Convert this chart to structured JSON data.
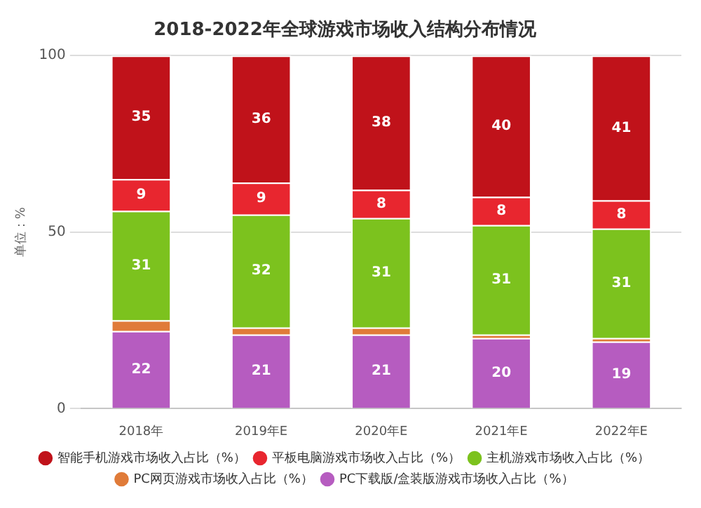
{
  "chart_data": {
    "type": "bar",
    "stacked": true,
    "title": "2018-2022年全球游戏市场收入结构分布情况",
    "ylabel": "单位：%",
    "categories": [
      "2018年",
      "2019年E",
      "2020年E",
      "2021年E",
      "2022年E"
    ],
    "series": [
      {
        "name": "PC下载版/盒装版游戏市场收入占比（%）",
        "color": "#b65cc0",
        "values": [
          22,
          21,
          21,
          20,
          19
        ],
        "value_labels": [
          "22",
          "21",
          "21",
          "20",
          "19"
        ]
      },
      {
        "name": "PC网页游戏市场收入占比（%）",
        "color": "#e07b39",
        "values": [
          3,
          2,
          2,
          1,
          1
        ],
        "value_labels": [
          null,
          null,
          null,
          null,
          null
        ]
      },
      {
        "name": "主机游戏市场收入占比（%）",
        "color": "#7cc21e",
        "values": [
          31,
          32,
          31,
          31,
          31
        ],
        "value_labels": [
          "31",
          "32",
          "31",
          "31",
          "31"
        ]
      },
      {
        "name": "平板电脑游戏市场收入占比（%）",
        "color": "#e8262f",
        "values": [
          9,
          9,
          8,
          8,
          8
        ],
        "value_labels": [
          "9",
          "9",
          "8",
          "8",
          "8"
        ]
      },
      {
        "name": "智能手机游戏市场收入占比（%）",
        "color": "#c0121a",
        "values": [
          35,
          36,
          38,
          40,
          41
        ],
        "value_labels": [
          "35",
          "36",
          "38",
          "40",
          "41"
        ]
      }
    ],
    "ylim": [
      0,
      100
    ],
    "yticks": [
      0,
      50,
      100
    ],
    "grid": "y",
    "legend": "bottom"
  }
}
